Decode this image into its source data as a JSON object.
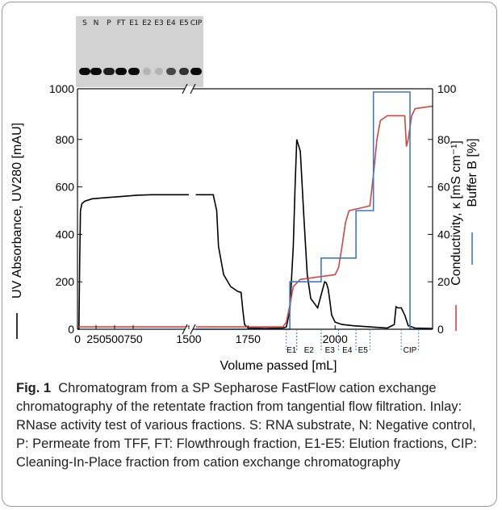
{
  "inlay": {
    "lanes": [
      "S",
      "N",
      "P",
      "FT",
      "E1",
      "E2",
      "E3",
      "E4",
      "E5",
      "CIP"
    ],
    "band_intensity": [
      1.0,
      1.0,
      0.9,
      1.0,
      1.0,
      0.15,
      0.15,
      0.7,
      0.8,
      1.0
    ]
  },
  "caption": {
    "fig_label": "Fig. 1",
    "text": "Chromatogram from a SP Sepharose FastFlow cation exchange chromatography of the retentate fraction from tangential flow filtration. Inlay: RNase activity test of various fractions. S: RNA substrate, N: Negative control, P: Permeate from TFF, FT: Flowthrough fraction, E1-E5: Elution fractions, CIP: Cleaning-In-Place fraction from cation exchange chromatography"
  },
  "chart_data": {
    "type": "line",
    "xlabel": "Volume passed [mL]",
    "ylabel_left": "UV Absorbance, UV280 [mAU]",
    "ylabel_right_conductivity": "Conductivity, κ [mS cm⁻¹]",
    "ylabel_right_buffer": "Buffer B [%]",
    "x_break": true,
    "segments": [
      {
        "xlim": [
          0,
          1500
        ],
        "ticks": [
          0,
          250,
          500,
          750,
          1500
        ],
        "tick_labels": [
          "0",
          "250",
          "500",
          "750",
          "1500"
        ]
      },
      {
        "xlim": [
          1580,
          2280
        ],
        "ticks": [
          1750,
          2000
        ],
        "tick_labels": [
          "1750",
          "2000"
        ]
      }
    ],
    "ylim_left": [
      0,
      1000
    ],
    "yticks_left": [
      0,
      200,
      400,
      600,
      800,
      1000
    ],
    "ylim_right": [
      0,
      100
    ],
    "yticks_right": [
      0,
      20,
      40,
      60,
      80,
      100
    ],
    "fractions": [
      {
        "label": "E1",
        "range": [
          1860,
          1890
        ]
      },
      {
        "label": "E2",
        "range": [
          1890,
          1960
        ]
      },
      {
        "label": "E3",
        "range": [
          1960,
          2010
        ]
      },
      {
        "label": "E4",
        "range": [
          2010,
          2060
        ]
      },
      {
        "label": "E5",
        "range": [
          2060,
          2100
        ]
      },
      {
        "label": "CIP",
        "range": [
          2190,
          2240
        ]
      }
    ],
    "series": [
      {
        "name": "UV Absorbance",
        "axis": "left",
        "color": "#000000",
        "x": [
          0,
          20,
          30,
          40,
          60,
          100,
          200,
          400,
          600,
          800,
          1000,
          1200,
          1500,
          1600,
          1650,
          1660,
          1665,
          1680,
          1700,
          1720,
          1730,
          1735,
          1740,
          1750,
          1800,
          1850,
          1860,
          1870,
          1880,
          1885,
          1890,
          1900,
          1910,
          1920,
          1930,
          1950,
          1970,
          1975,
          1980,
          1985,
          1990,
          2000,
          2020,
          2050,
          2100,
          2150,
          2170,
          2175,
          2180,
          2190,
          2200,
          2210,
          2230,
          2280
        ],
        "y": [
          0,
          0,
          300,
          500,
          530,
          540,
          550,
          555,
          560,
          565,
          567,
          567,
          567,
          567,
          567,
          500,
          350,
          230,
          180,
          160,
          155,
          80,
          20,
          5,
          3,
          5,
          10,
          80,
          350,
          600,
          800,
          750,
          480,
          230,
          130,
          90,
          200,
          195,
          170,
          120,
          60,
          30,
          20,
          15,
          10,
          5,
          20,
          95,
          90,
          90,
          60,
          15,
          5,
          3
        ]
      },
      {
        "name": "Conductivity",
        "axis": "right",
        "color": "#d0453f",
        "x": [
          0,
          1500,
          1600,
          1850,
          1860,
          1870,
          1880,
          1900,
          1950,
          2000,
          2010,
          2020,
          2030,
          2040,
          2100,
          2110,
          2120,
          2130,
          2150,
          2200,
          2205,
          2210,
          2220,
          2230,
          2280
        ],
        "y": [
          1,
          1,
          1,
          1,
          3,
          10,
          18,
          21,
          22,
          23,
          26,
          35,
          45,
          50,
          52,
          65,
          80,
          88,
          90,
          90,
          77,
          80,
          90,
          93,
          94
        ]
      },
      {
        "name": "Buffer B",
        "axis": "right",
        "color": "#3f78c4",
        "x": [
          1600,
          1870,
          1870,
          1960,
          1960,
          2060,
          2060,
          2110,
          2110,
          2215,
          2215,
          2280
        ],
        "y": [
          0,
          0,
          20,
          20,
          30,
          30,
          50,
          50,
          100,
          100,
          0,
          0
        ]
      }
    ]
  }
}
